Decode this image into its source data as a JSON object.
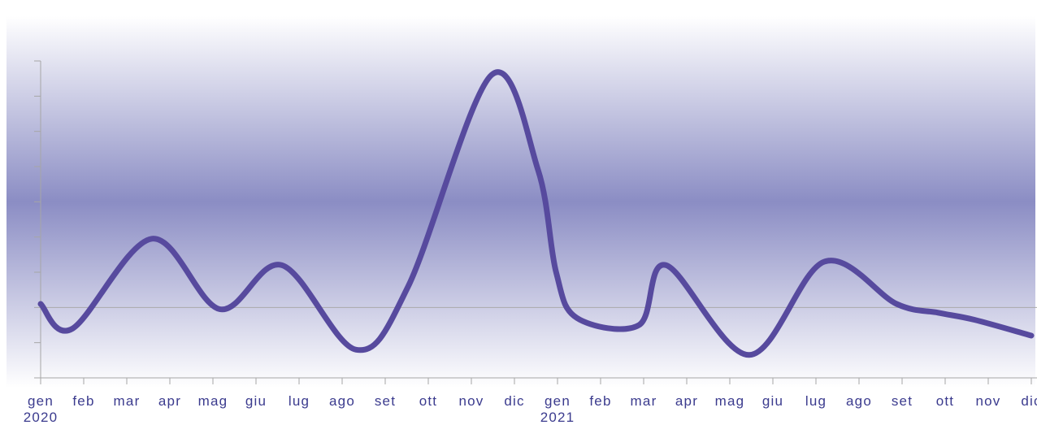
{
  "colors": {
    "line": "#574a9e",
    "band_center": "#8b8dc4",
    "band_edge": "#ffffff",
    "axis": "#a6a6a6",
    "baseline": "#aaaaaa",
    "label_text": "#3b3b8e"
  },
  "chart_data": {
    "type": "line",
    "title": "",
    "xlabel": "",
    "ylabel": "",
    "grid": false,
    "smooth": true,
    "y_tick_count": 9,
    "ylim": [
      -2,
      7
    ],
    "baseline_y": 0,
    "categories": [
      "gen 2020",
      "feb",
      "mar",
      "apr",
      "mag",
      "giu",
      "lug",
      "ago",
      "set",
      "ott",
      "nov",
      "dic",
      "gen 2021",
      "feb",
      "mar",
      "apr",
      "mag",
      "giu",
      "lug",
      "ago",
      "set",
      "ott",
      "nov",
      "dic"
    ],
    "x_tick_labels": [
      {
        "month": "gen",
        "year": "2020"
      },
      {
        "month": "feb",
        "year": ""
      },
      {
        "month": "mar",
        "year": ""
      },
      {
        "month": "apr",
        "year": ""
      },
      {
        "month": "mag",
        "year": ""
      },
      {
        "month": "giu",
        "year": ""
      },
      {
        "month": "lug",
        "year": ""
      },
      {
        "month": "ago",
        "year": ""
      },
      {
        "month": "set",
        "year": ""
      },
      {
        "month": "ott",
        "year": ""
      },
      {
        "month": "nov",
        "year": ""
      },
      {
        "month": "dic",
        "year": ""
      },
      {
        "month": "gen",
        "year": "2021"
      },
      {
        "month": "feb",
        "year": ""
      },
      {
        "month": "mar",
        "year": ""
      },
      {
        "month": "apr",
        "year": ""
      },
      {
        "month": "mag",
        "year": ""
      },
      {
        "month": "giu",
        "year": ""
      },
      {
        "month": "lug",
        "year": ""
      },
      {
        "month": "ago",
        "year": ""
      },
      {
        "month": "set",
        "year": ""
      },
      {
        "month": "ott",
        "year": ""
      },
      {
        "month": "nov",
        "year": ""
      },
      {
        "month": "dic",
        "year": ""
      }
    ],
    "x": [
      "2020-01-01",
      "2020-01-24",
      "2020-03-19",
      "2020-05-06",
      "2020-06-19",
      "2020-08-11",
      "2020-09-17",
      "2020-11-15",
      "2020-12-18",
      "2020-12-31",
      "2021-01-15",
      "2021-02-26",
      "2021-03-17",
      "2021-05-15",
      "2021-07-07",
      "2021-08-28",
      "2021-09-26",
      "2021-10-22",
      "2021-12-01"
    ],
    "series": [
      {
        "values": [
          0.1,
          -0.6,
          1.95,
          -0.05,
          1.2,
          -1.2,
          0.6,
          6.6,
          3.9,
          1.0,
          -0.3,
          -0.5,
          1.2,
          -1.35,
          1.3,
          0.1,
          -0.15,
          -0.35,
          -0.8
        ]
      }
    ]
  }
}
